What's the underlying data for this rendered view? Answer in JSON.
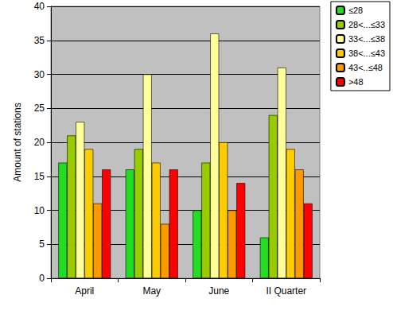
{
  "chart_data": {
    "type": "bar",
    "categories": [
      "April",
      "May",
      "June",
      "II Quarter"
    ],
    "y_label": "Amount of stations",
    "series": [
      {
        "name": "≤28",
        "color": "#22dd22",
        "values": [
          17,
          16,
          10,
          6
        ]
      },
      {
        "name": "28<...≤33",
        "color": "#99cc00",
        "values": [
          21,
          19,
          17,
          24
        ]
      },
      {
        "name": "33<...≤38",
        "color": "#ffff99",
        "values": [
          23,
          30,
          36,
          31
        ]
      },
      {
        "name": "38<...≤43",
        "color": "#ffcc00",
        "values": [
          19,
          17,
          20,
          19
        ]
      },
      {
        "name": "43<..≤48",
        "color": "#ff9900",
        "values": [
          11,
          8,
          10,
          16
        ]
      },
      {
        "name": ">48",
        "color": "#ff0000",
        "values": [
          16,
          16,
          14,
          11
        ]
      }
    ],
    "ylim": [
      0,
      40
    ],
    "yticks": [
      0,
      5,
      10,
      15,
      20,
      25,
      30,
      35,
      40
    ],
    "grid": true,
    "legend": "top-right"
  }
}
